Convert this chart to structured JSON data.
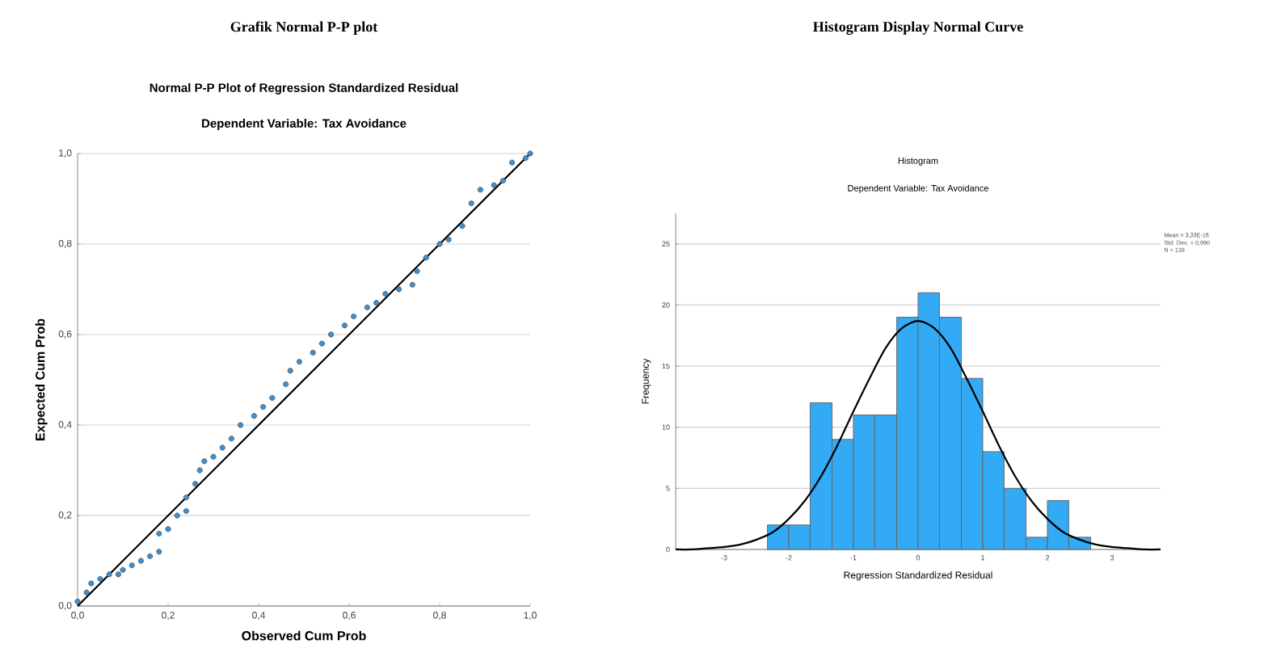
{
  "chart_data": [
    {
      "type": "scatter",
      "title": "Normal P-P Plot of Regression Standardized Residual",
      "subtitle": "Dependent Variable: Tax Avoidance",
      "xlabel": "Observed Cum Prob",
      "ylabel": "Expected Cum Prob",
      "annotations": [
        "Grafik Normal P-P plot"
      ],
      "xlim": [
        0,
        1
      ],
      "ylim": [
        0,
        1
      ],
      "xticks": [
        {
          "value": 0,
          "label": "0,0"
        },
        {
          "value": 0.2,
          "label": "0,2"
        },
        {
          "value": 0.4,
          "label": "0,4"
        },
        {
          "value": 0.6,
          "label": "0,6"
        },
        {
          "value": 0.8,
          "label": "0,8"
        },
        {
          "value": 1,
          "label": "1,0"
        }
      ],
      "yticks": [
        {
          "value": 0,
          "label": "0,0"
        },
        {
          "value": 0.2,
          "label": "0,2"
        },
        {
          "value": 0.4,
          "label": "0,4"
        },
        {
          "value": 0.6,
          "label": "0,6"
        },
        {
          "value": 0.8,
          "label": "0,8"
        },
        {
          "value": 1,
          "label": "1,0"
        }
      ],
      "grid": "y",
      "series": [
        {
          "type": "scatter",
          "marker": "circle",
          "color": "#3c8fd0",
          "x": [
            0,
            0.02,
            0.03,
            0.05,
            0.07,
            0.09,
            0.1,
            0.12,
            0.14,
            0.16,
            0.18,
            0.18,
            0.2,
            0.22,
            0.24,
            0.24,
            0.26,
            0.27,
            0.28,
            0.3,
            0.32,
            0.34,
            0.36,
            0.39,
            0.41,
            0.43,
            0.46,
            0.47,
            0.49,
            0.52,
            0.54,
            0.56,
            0.59,
            0.61,
            0.64,
            0.66,
            0.68,
            0.71,
            0.74,
            0.75,
            0.77,
            0.8,
            0.82,
            0.85,
            0.87,
            0.89,
            0.92,
            0.94,
            0.96,
            0.99,
            1.0
          ],
          "values": [
            0.01,
            0.03,
            0.05,
            0.06,
            0.07,
            0.07,
            0.08,
            0.09,
            0.1,
            0.11,
            0.12,
            0.16,
            0.17,
            0.2,
            0.21,
            0.24,
            0.27,
            0.3,
            0.32,
            0.33,
            0.35,
            0.37,
            0.4,
            0.42,
            0.44,
            0.46,
            0.49,
            0.52,
            0.54,
            0.56,
            0.58,
            0.6,
            0.62,
            0.64,
            0.66,
            0.67,
            0.69,
            0.7,
            0.71,
            0.74,
            0.77,
            0.8,
            0.81,
            0.84,
            0.89,
            0.92,
            0.93,
            0.94,
            0.98,
            0.99,
            1.0
          ]
        },
        {
          "type": "line",
          "marker": "none",
          "color": "#000000",
          "x": [
            0,
            1
          ],
          "values": [
            0,
            1
          ]
        }
      ]
    },
    {
      "type": "histogram",
      "title": "Histogram",
      "subtitle": "Dependent Variable: Tax Avoidance",
      "xlabel": "Regression Standardized Residual",
      "ylabel": "Frequency",
      "annotations": [
        "Histogram Display Normal Curve",
        "Mean = 3,33E-16",
        "Std. Dev. = 0,990",
        "N = 139"
      ],
      "xlim": [
        -3.75,
        3.75
      ],
      "ylim": [
        0,
        27.5
      ],
      "xticks": [
        -3,
        -2,
        -1,
        0,
        1,
        2,
        3
      ],
      "yticks": [
        0,
        5,
        10,
        15,
        20,
        25
      ],
      "grid": "y",
      "bins": [
        -2.33,
        -2.0,
        -1.67,
        -1.33,
        -1.0,
        -0.67,
        -0.33,
        0,
        0.33,
        0.67,
        1.0,
        1.33,
        1.67,
        2.0,
        2.33,
        2.67
      ],
      "values": [
        2,
        2,
        12,
        9,
        11,
        11,
        19,
        21,
        19,
        14,
        8,
        5,
        1,
        4,
        1
      ],
      "color": "#33aaf5",
      "series": [
        {
          "type": "line",
          "marker": "none",
          "color": "#000000",
          "x": [
            -3.75,
            -3.5,
            -3.25,
            -3.0,
            -2.75,
            -2.5,
            -2.25,
            -2.0,
            -1.75,
            -1.5,
            -1.25,
            -1.0,
            -0.75,
            -0.5,
            -0.25,
            0,
            0.25,
            0.5,
            0.75,
            1.0,
            1.25,
            1.5,
            1.75,
            2.0,
            2.25,
            2.5,
            2.75,
            3.0,
            3.25,
            3.5,
            3.75
          ],
          "values": [
            0.0,
            0.0,
            0.1,
            0.2,
            0.4,
            0.8,
            1.4,
            2.5,
            4.0,
            6.0,
            8.5,
            11.3,
            14.0,
            16.5,
            18.1,
            18.7,
            18.1,
            16.5,
            14.0,
            11.3,
            8.5,
            6.0,
            4.0,
            2.5,
            1.4,
            0.8,
            0.4,
            0.2,
            0.1,
            0.0,
            0.0
          ]
        }
      ]
    }
  ]
}
